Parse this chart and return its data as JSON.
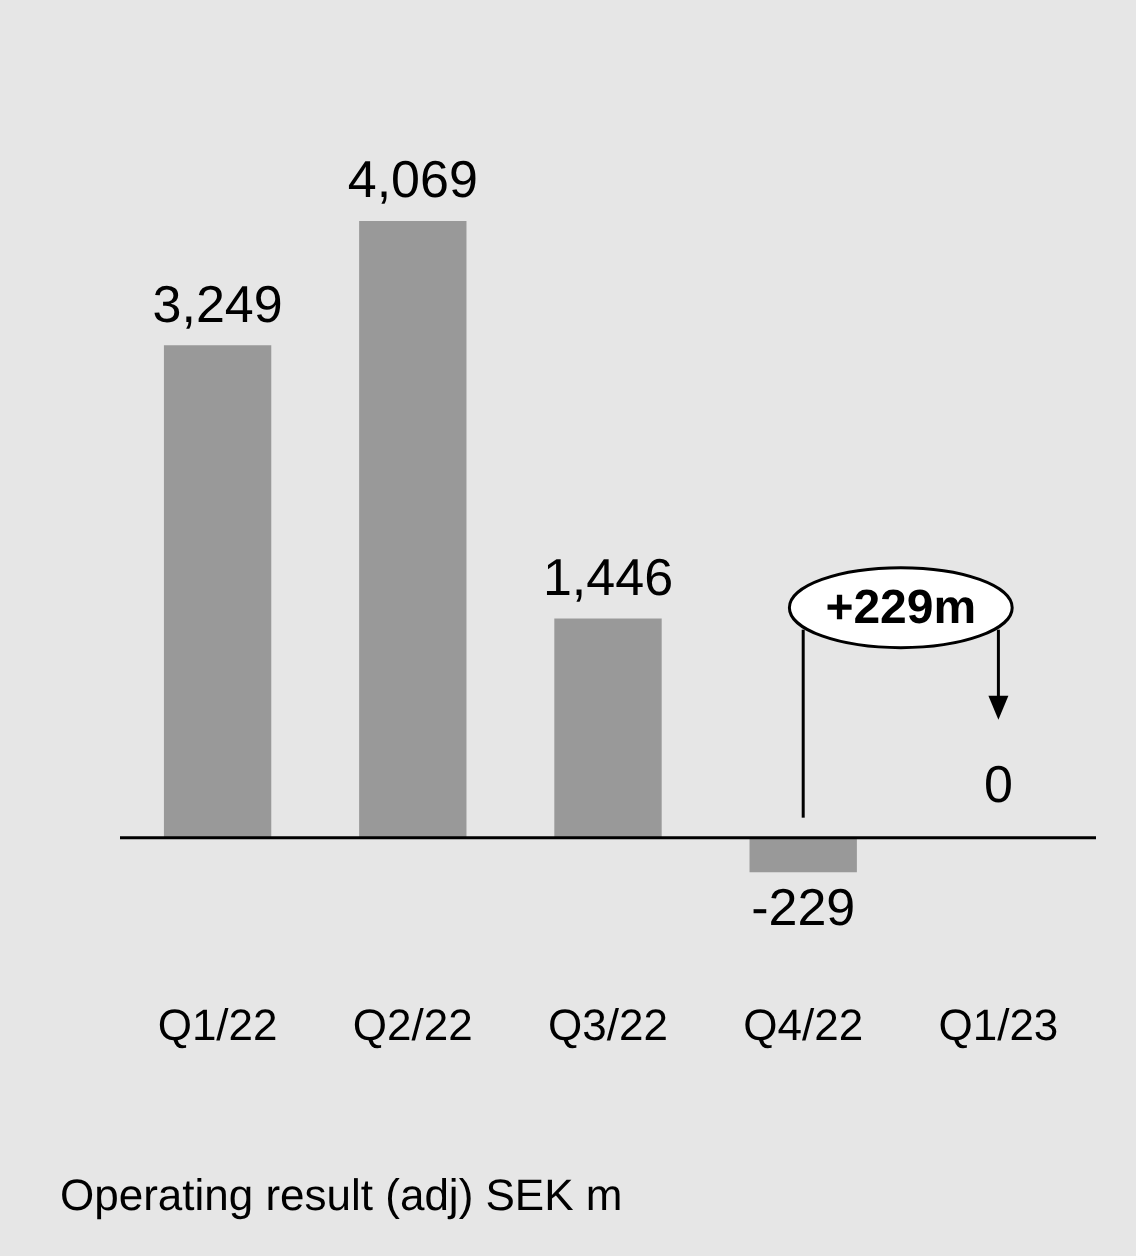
{
  "chart_data": {
    "type": "bar",
    "categories": [
      "Q1/22",
      "Q2/22",
      "Q3/22",
      "Q4/22",
      "Q1/23"
    ],
    "values": [
      3249,
      4069,
      1446,
      -229,
      0
    ],
    "value_labels": [
      "3,249",
      "4,069",
      "1,446",
      "-229",
      "0"
    ],
    "color": "#999999",
    "relative": false,
    "grid": false,
    "legend": false,
    "annotations": [
      "+229m",
      "Operating result (adj) SEK m"
    ]
  }
}
